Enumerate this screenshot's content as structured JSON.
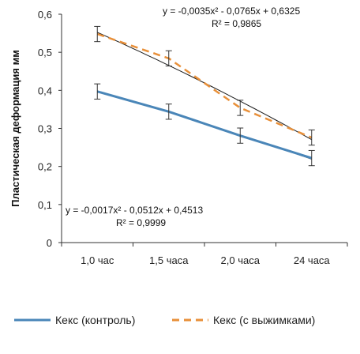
{
  "chart_data": {
    "type": "line",
    "title": "",
    "xlabel": "",
    "ylabel": "Пластическая деформация мм",
    "categories": [
      "1,0 час",
      "1,5 часа",
      "2,0 часа",
      "24 часа"
    ],
    "yticks": [
      "0",
      "0,1",
      "0,2",
      "0,3",
      "0,4",
      "0,5",
      "0,6"
    ],
    "ylim": [
      0,
      0.6
    ],
    "grid": false,
    "legend_position": "bottom",
    "series": [
      {
        "name": "Кекс (контроль)",
        "values": [
          0.397,
          0.344,
          0.281,
          0.222
        ],
        "error": [
          0.02,
          0.02,
          0.02,
          0.02
        ],
        "color": "#4a86b8",
        "style": "solid",
        "trendline": {
          "equation": "y = -0,0017x² - 0,0512x + 0,4513",
          "r2": "R² = 0,9999",
          "coefficients": [
            -0.0017,
            -0.0512,
            0.4513
          ]
        }
      },
      {
        "name": "Кекс (с выжимками)",
        "values": [
          0.548,
          0.484,
          0.354,
          0.276
        ],
        "error": [
          0.02,
          0.02,
          0.02,
          0.02
        ],
        "color": "#e8903a",
        "style": "dashed",
        "trendline": {
          "equation": "y = -0,0035x² - 0,0765x + 0,6325",
          "r2": "R² = 0,9865",
          "coefficients": [
            -0.0035,
            -0.0765,
            0.6325
          ]
        }
      }
    ]
  }
}
